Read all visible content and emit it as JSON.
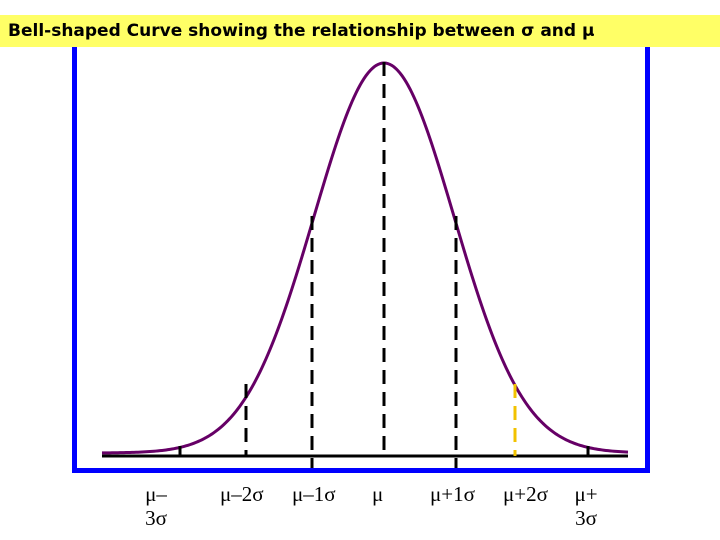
{
  "title": "Bell-shaped Curve showing the relationship between σ and μ",
  "colors": {
    "title_background": "#ffff66",
    "frame": "#0000ff",
    "curve": "#660066",
    "highlight_line": "#f2c200",
    "dashed_line": "#000000"
  },
  "tick_labels": {
    "minus3": {
      "line1": "μ–",
      "line2": "3σ"
    },
    "minus2": "μ–2σ",
    "minus1": "μ–1σ",
    "mean": "μ",
    "plus1": "μ+1σ",
    "plus2": "μ+2σ",
    "plus3": {
      "line1": "μ+",
      "line2": "3σ"
    }
  }
}
